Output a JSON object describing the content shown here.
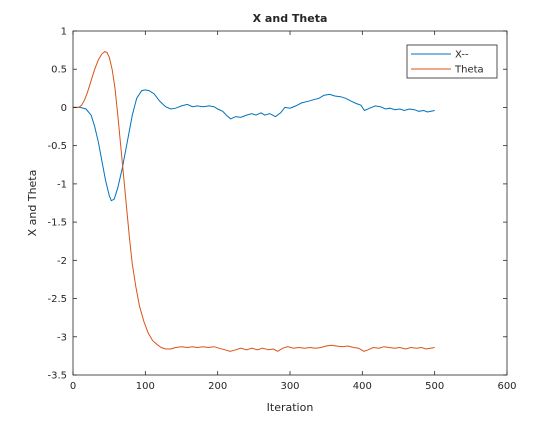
{
  "figure": {
    "background": "#ffffff"
  },
  "chart_data": {
    "type": "line",
    "title": "X and Theta",
    "xlabel": "Iteration",
    "ylabel": "X and Theta",
    "xlim": [
      0,
      600
    ],
    "ylim": [
      -3.5,
      1
    ],
    "xticks": [
      0,
      100,
      200,
      300,
      400,
      500,
      600
    ],
    "xtick_labels": [
      "0",
      "100",
      "200",
      "300",
      "400",
      "500",
      "600"
    ],
    "yticks": [
      1,
      0.5,
      0,
      -0.5,
      -1,
      -1.5,
      -2,
      -2.5,
      -3,
      -3.5
    ],
    "ytick_labels": [
      "1",
      "0.5",
      "0",
      "-0.5",
      "-1",
      "-1.5",
      "-2",
      "-2.5",
      "-3",
      "-3.5"
    ],
    "grid": false,
    "legend_position": "top-right",
    "series": [
      {
        "name": "X--",
        "color": "#0072BD",
        "points": [
          [
            0,
            0
          ],
          [
            10,
            0
          ],
          [
            18,
            -0.02
          ],
          [
            25,
            -0.1
          ],
          [
            30,
            -0.25
          ],
          [
            35,
            -0.45
          ],
          [
            40,
            -0.7
          ],
          [
            45,
            -0.95
          ],
          [
            50,
            -1.15
          ],
          [
            53,
            -1.22
          ],
          [
            57,
            -1.2
          ],
          [
            62,
            -1.05
          ],
          [
            68,
            -0.8
          ],
          [
            75,
            -0.45
          ],
          [
            82,
            -0.1
          ],
          [
            88,
            0.12
          ],
          [
            95,
            0.22
          ],
          [
            100,
            0.23
          ],
          [
            105,
            0.22
          ],
          [
            112,
            0.18
          ],
          [
            120,
            0.08
          ],
          [
            128,
            0.01
          ],
          [
            135,
            -0.02
          ],
          [
            142,
            -0.01
          ],
          [
            150,
            0.02
          ],
          [
            158,
            0.04
          ],
          [
            165,
            0.01
          ],
          [
            172,
            0.02
          ],
          [
            180,
            0.01
          ],
          [
            188,
            0.02
          ],
          [
            195,
            0.01
          ],
          [
            200,
            -0.02
          ],
          [
            207,
            -0.05
          ],
          [
            212,
            -0.1
          ],
          [
            218,
            -0.15
          ],
          [
            225,
            -0.12
          ],
          [
            232,
            -0.13
          ],
          [
            240,
            -0.1
          ],
          [
            247,
            -0.08
          ],
          [
            253,
            -0.1
          ],
          [
            260,
            -0.07
          ],
          [
            265,
            -0.1
          ],
          [
            272,
            -0.08
          ],
          [
            280,
            -0.12
          ],
          [
            287,
            -0.07
          ],
          [
            293,
            0.0
          ],
          [
            300,
            -0.01
          ],
          [
            308,
            0.02
          ],
          [
            316,
            0.06
          ],
          [
            325,
            0.08
          ],
          [
            332,
            0.1
          ],
          [
            340,
            0.12
          ],
          [
            347,
            0.16
          ],
          [
            355,
            0.17
          ],
          [
            362,
            0.15
          ],
          [
            370,
            0.14
          ],
          [
            377,
            0.12
          ],
          [
            385,
            0.08
          ],
          [
            392,
            0.05
          ],
          [
            398,
            0.03
          ],
          [
            403,
            -0.04
          ],
          [
            410,
            -0.01
          ],
          [
            418,
            0.02
          ],
          [
            425,
            0.01
          ],
          [
            432,
            -0.02
          ],
          [
            438,
            -0.01
          ],
          [
            445,
            -0.03
          ],
          [
            452,
            -0.02
          ],
          [
            458,
            -0.04
          ],
          [
            465,
            -0.02
          ],
          [
            472,
            -0.03
          ],
          [
            478,
            -0.05
          ],
          [
            485,
            -0.04
          ],
          [
            490,
            -0.06
          ],
          [
            495,
            -0.05
          ],
          [
            500,
            -0.04
          ]
        ]
      },
      {
        "name": "Theta",
        "color": "#D95319",
        "points": [
          [
            0,
            0
          ],
          [
            8,
            0
          ],
          [
            12,
            0.03
          ],
          [
            16,
            0.1
          ],
          [
            20,
            0.2
          ],
          [
            25,
            0.35
          ],
          [
            30,
            0.5
          ],
          [
            35,
            0.62
          ],
          [
            40,
            0.7
          ],
          [
            44,
            0.73
          ],
          [
            47,
            0.72
          ],
          [
            50,
            0.66
          ],
          [
            54,
            0.5
          ],
          [
            58,
            0.25
          ],
          [
            62,
            -0.1
          ],
          [
            66,
            -0.5
          ],
          [
            70,
            -0.9
          ],
          [
            74,
            -1.3
          ],
          [
            78,
            -1.7
          ],
          [
            82,
            -2.05
          ],
          [
            87,
            -2.35
          ],
          [
            92,
            -2.6
          ],
          [
            98,
            -2.8
          ],
          [
            104,
            -2.95
          ],
          [
            110,
            -3.05
          ],
          [
            116,
            -3.1
          ],
          [
            122,
            -3.14
          ],
          [
            128,
            -3.16
          ],
          [
            135,
            -3.16
          ],
          [
            142,
            -3.14
          ],
          [
            150,
            -3.13
          ],
          [
            158,
            -3.14
          ],
          [
            165,
            -3.13
          ],
          [
            172,
            -3.14
          ],
          [
            180,
            -3.13
          ],
          [
            187,
            -3.14
          ],
          [
            195,
            -3.13
          ],
          [
            202,
            -3.15
          ],
          [
            210,
            -3.17
          ],
          [
            217,
            -3.19
          ],
          [
            225,
            -3.17
          ],
          [
            232,
            -3.15
          ],
          [
            240,
            -3.17
          ],
          [
            247,
            -3.15
          ],
          [
            255,
            -3.17
          ],
          [
            262,
            -3.15
          ],
          [
            270,
            -3.17
          ],
          [
            277,
            -3.16
          ],
          [
            283,
            -3.19
          ],
          [
            290,
            -3.15
          ],
          [
            297,
            -3.13
          ],
          [
            305,
            -3.15
          ],
          [
            312,
            -3.14
          ],
          [
            320,
            -3.15
          ],
          [
            328,
            -3.14
          ],
          [
            335,
            -3.15
          ],
          [
            343,
            -3.14
          ],
          [
            350,
            -3.12
          ],
          [
            357,
            -3.11
          ],
          [
            364,
            -3.12
          ],
          [
            372,
            -3.13
          ],
          [
            380,
            -3.12
          ],
          [
            388,
            -3.14
          ],
          [
            395,
            -3.15
          ],
          [
            402,
            -3.19
          ],
          [
            408,
            -3.17
          ],
          [
            415,
            -3.14
          ],
          [
            423,
            -3.15
          ],
          [
            430,
            -3.13
          ],
          [
            437,
            -3.14
          ],
          [
            445,
            -3.15
          ],
          [
            452,
            -3.14
          ],
          [
            460,
            -3.16
          ],
          [
            467,
            -3.14
          ],
          [
            475,
            -3.15
          ],
          [
            482,
            -3.14
          ],
          [
            488,
            -3.16
          ],
          [
            494,
            -3.15
          ],
          [
            500,
            -3.14
          ]
        ]
      }
    ]
  }
}
